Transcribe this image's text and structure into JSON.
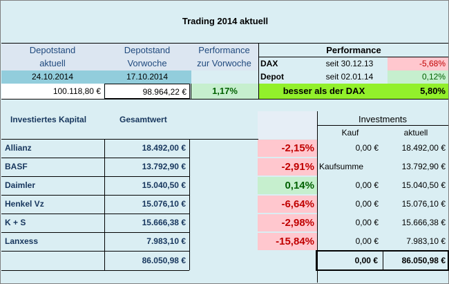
{
  "title": "Trading 2014 aktuell",
  "header": {
    "depot_aktuell_l1": "Depotstand",
    "depot_aktuell_l2": "aktuell",
    "depot_vorwoche_l1": "Depotstand",
    "depot_vorwoche_l2": "Vorwoche",
    "perf_l1": "Performance",
    "perf_l2": "zur Vorwoche",
    "date_aktuell": "24.10.2014",
    "date_vorwoche": "17.10.2014",
    "value_aktuell": "100.118,80 €",
    "value_vorwoche": "98.964,22 €",
    "perf_value": "1,17%"
  },
  "performance": {
    "title": "Performance",
    "dax_label": "DAX",
    "dax_since": "seit 30.12.13",
    "dax_value": "-5,68%",
    "depot_label": "Depot",
    "depot_since": "seit 02.01.14",
    "depot_value": "0,12%",
    "compare_label": "besser als der DAX",
    "compare_value": "5,80%"
  },
  "table": {
    "col_name": "Investiertes Kapital",
    "col_total": "Gesamtwert",
    "investments_title": "Investments",
    "col_kauf": "Kauf",
    "col_aktuell": "aktuell",
    "rows": [
      {
        "name": "Allianz",
        "total": "18.492,00 €",
        "perf": "-2,15%",
        "kauf": "0,00 €",
        "aktuell": "18.492,00 €"
      },
      {
        "name": "BASF",
        "total": "13.792,90 €",
        "perf": "-2,91%",
        "kauf": "Kaufsumme",
        "aktuell": "13.792,90 €"
      },
      {
        "name": "Daimler",
        "total": "15.040,50 €",
        "perf": "0,14%",
        "kauf": "0,00 €",
        "aktuell": "15.040,50 €"
      },
      {
        "name": "Henkel Vz",
        "total": "15.076,10 €",
        "perf": "-6,64%",
        "kauf": "0,00 €",
        "aktuell": "15.076,10 €"
      },
      {
        "name": "K + S",
        "total": "15.666,38 €",
        "perf": "-2,98%",
        "kauf": "0,00 €",
        "aktuell": "15.666,38 €"
      },
      {
        "name": "Lanxess",
        "total": "7.983,10 €",
        "perf": "-15,84%",
        "kauf": "0,00 €",
        "aktuell": "7.983,10 €"
      }
    ],
    "sum_total": "86.050,98 €",
    "sum_kauf": "0,00 €",
    "sum_aktuell": "86.050,98 €"
  },
  "colors": {
    "sheet_bg": "#daeef3",
    "header_gray": "#dce6f1",
    "date_teal": "#92cddc",
    "negative_fill": "#ffc7ce",
    "negative_text": "#c00000",
    "positive_fill": "#c6efce",
    "positive_text": "#006100",
    "lime": "#92f02b"
  }
}
